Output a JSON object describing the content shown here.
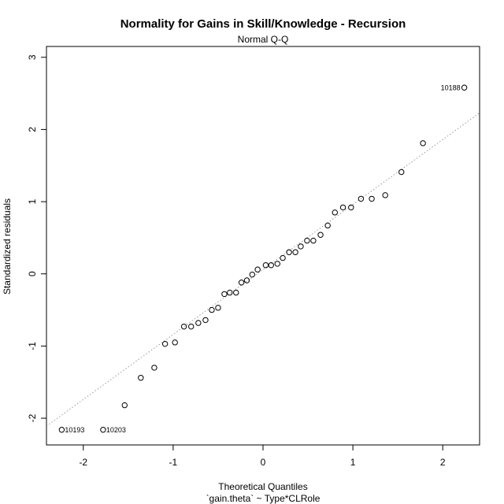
{
  "chart_data": {
    "type": "scatter",
    "title": "Normality for Gains in Skill/Knowledge - Recursion",
    "subtitle": "Normal Q-Q",
    "xlabel": "Theoretical Quantiles",
    "xlabel2": "`gain.theta` ~ Type*CLRole",
    "ylabel": "Standardized residuals",
    "xlim": [
      -2.41,
      2.41
    ],
    "ylim": [
      -2.37,
      3.15
    ],
    "x_ticks": [
      -2,
      -1,
      0,
      1,
      2
    ],
    "y_ticks": [
      -2,
      -1,
      0,
      1,
      2,
      3
    ],
    "grid": false,
    "reference_line": {
      "style": "dotted",
      "color": "#999999",
      "slope": 0.9,
      "intercept": 0.06
    },
    "points": [
      {
        "x": -2.24,
        "y": -2.16,
        "label": "10193"
      },
      {
        "x": -1.78,
        "y": -2.16,
        "label": "10203"
      },
      {
        "x": -1.54,
        "y": -1.82
      },
      {
        "x": -1.36,
        "y": -1.44
      },
      {
        "x": -1.21,
        "y": -1.3
      },
      {
        "x": -1.09,
        "y": -0.97
      },
      {
        "x": -0.98,
        "y": -0.95
      },
      {
        "x": -0.88,
        "y": -0.73
      },
      {
        "x": -0.8,
        "y": -0.73
      },
      {
        "x": -0.72,
        "y": -0.68
      },
      {
        "x": -0.64,
        "y": -0.64
      },
      {
        "x": -0.57,
        "y": -0.5
      },
      {
        "x": -0.5,
        "y": -0.47
      },
      {
        "x": -0.43,
        "y": -0.28
      },
      {
        "x": -0.37,
        "y": -0.26
      },
      {
        "x": -0.3,
        "y": -0.26
      },
      {
        "x": -0.24,
        "y": -0.12
      },
      {
        "x": -0.18,
        "y": -0.09
      },
      {
        "x": -0.12,
        "y": -0.01
      },
      {
        "x": -0.06,
        "y": 0.06
      },
      {
        "x": 0.03,
        "y": 0.12
      },
      {
        "x": 0.09,
        "y": 0.12
      },
      {
        "x": 0.16,
        "y": 0.14
      },
      {
        "x": 0.22,
        "y": 0.22
      },
      {
        "x": 0.29,
        "y": 0.3
      },
      {
        "x": 0.36,
        "y": 0.3
      },
      {
        "x": 0.42,
        "y": 0.38
      },
      {
        "x": 0.49,
        "y": 0.46
      },
      {
        "x": 0.56,
        "y": 0.46
      },
      {
        "x": 0.64,
        "y": 0.54
      },
      {
        "x": 0.72,
        "y": 0.67
      },
      {
        "x": 0.8,
        "y": 0.85
      },
      {
        "x": 0.89,
        "y": 0.92
      },
      {
        "x": 0.98,
        "y": 0.92
      },
      {
        "x": 1.09,
        "y": 1.04
      },
      {
        "x": 1.21,
        "y": 1.04
      },
      {
        "x": 1.36,
        "y": 1.09
      },
      {
        "x": 1.54,
        "y": 1.41
      },
      {
        "x": 1.78,
        "y": 1.81
      },
      {
        "x": 2.24,
        "y": 2.58,
        "label": "10188"
      }
    ]
  }
}
